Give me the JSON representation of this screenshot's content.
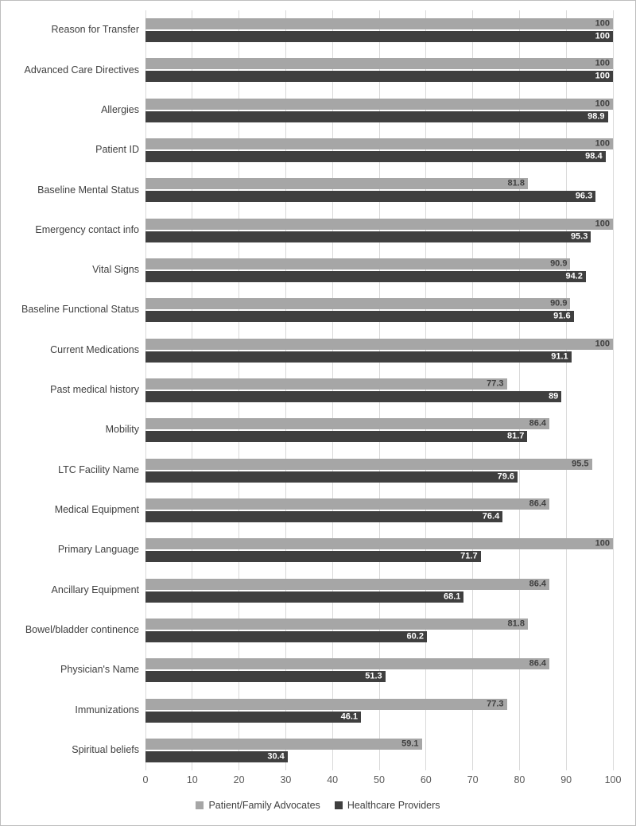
{
  "chart_data": {
    "type": "bar",
    "orientation": "horizontal",
    "title": "",
    "xlabel": "",
    "ylabel": "",
    "xlim": [
      0,
      100
    ],
    "x_ticks": [
      0,
      10,
      20,
      30,
      40,
      50,
      60,
      70,
      80,
      90,
      100
    ],
    "grid": true,
    "legend_position": "bottom",
    "categories": [
      "Reason for Transfer",
      "Advanced Care Directives",
      "Allergies",
      "Patient ID",
      "Baseline Mental Status",
      "Emergency contact info",
      "Vital Signs",
      "Baseline Functional Status",
      "Current Medications",
      "Past medical history",
      "Mobility",
      "LTC Facility Name",
      "Medical Equipment",
      "Primary Language",
      "Ancillary Equipment",
      "Bowel/bladder continence",
      "Physician's Name",
      "Immunizations",
      "Spiritual beliefs"
    ],
    "series": [
      {
        "name": "Patient/Family Advocates",
        "color": "#a6a6a6",
        "label_color": "#404040",
        "values": [
          100,
          100,
          100,
          100,
          81.8,
          100,
          90.9,
          90.9,
          100,
          77.3,
          86.4,
          95.5,
          86.4,
          100,
          86.4,
          81.8,
          86.4,
          77.3,
          59.1
        ],
        "labels": [
          "100",
          "100",
          "100",
          "100",
          "81.8",
          "100",
          "90.9",
          "90.9",
          "100",
          "77.3",
          "86.4",
          "95.5",
          "86.4",
          "100",
          "86.4",
          "81.8",
          "86.4",
          "77.3",
          "59.1"
        ]
      },
      {
        "name": "Healthcare Providers",
        "color": "#3f3f3f",
        "label_color": "#ffffff",
        "values": [
          100,
          100,
          98.9,
          98.4,
          96.3,
          95.3,
          94.2,
          91.6,
          91.1,
          89,
          81.7,
          79.6,
          76.4,
          71.7,
          68.1,
          60.2,
          51.3,
          46.1,
          30.4
        ],
        "labels": [
          "100",
          "100",
          "98.9",
          "98.4",
          "96.3",
          "95.3",
          "94.2",
          "91.6",
          "91.1",
          "89",
          "81.7",
          "79.6",
          "76.4",
          "71.7",
          "68.1",
          "60.2",
          "51.3",
          "46.1",
          "30.4"
        ]
      }
    ],
    "colors": {
      "gridline": "#d9d9d9",
      "category_text": "#404040",
      "tick_text": "#595959"
    }
  }
}
